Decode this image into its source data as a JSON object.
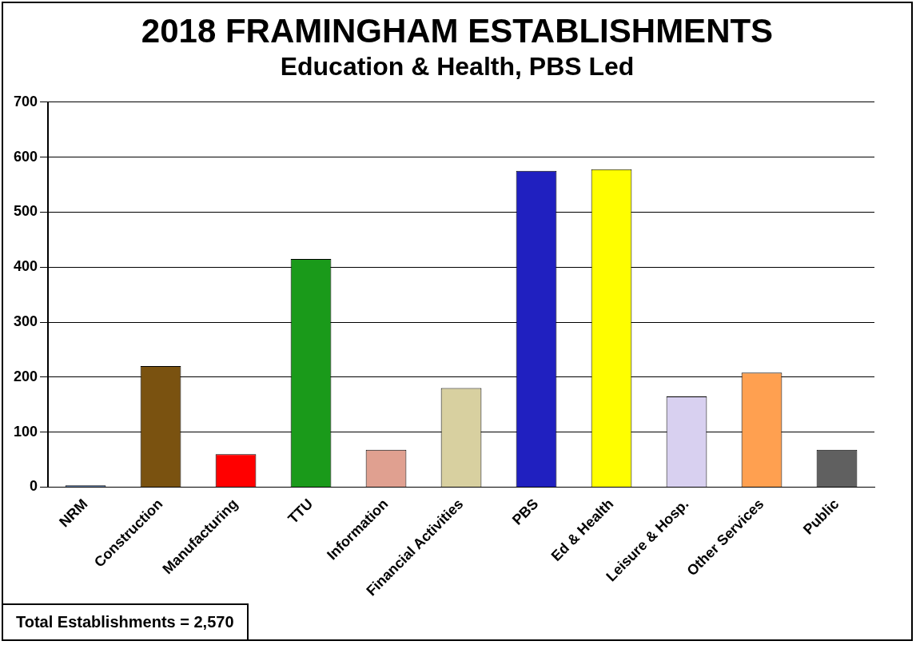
{
  "chart_data": {
    "type": "bar",
    "title": "2018 FRAMINGHAM ESTABLISHMENTS",
    "subtitle": "Education & Health, PBS Led",
    "categories": [
      "NRM",
      "Construction",
      "Manufacturing",
      "TTU",
      "Information",
      "Financial Activities",
      "PBS",
      "Ed & Health",
      "Leisure & Hosp.",
      "Other Services",
      "Public"
    ],
    "values": [
      3,
      220,
      60,
      415,
      68,
      180,
      575,
      578,
      165,
      208,
      68
    ],
    "colors": [
      "#4a6fa5",
      "#7a5210",
      "#ff0000",
      "#1a9a1a",
      "#e0a090",
      "#d8d0a0",
      "#2020c0",
      "#ffff00",
      "#d8d0f0",
      "#ffa050",
      "#606060"
    ],
    "ylim": [
      0,
      700
    ],
    "yticks": [
      0,
      100,
      200,
      300,
      400,
      500,
      600,
      700
    ],
    "grid": "y",
    "annotations": [
      "Total Establishments = 2,570"
    ]
  }
}
